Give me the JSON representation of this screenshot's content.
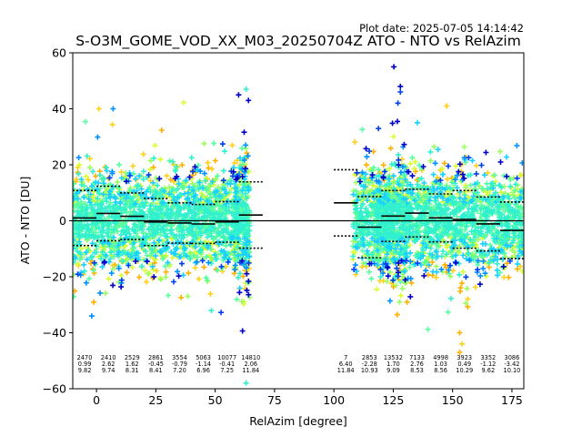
{
  "header": {
    "plot_date": "Plot date: 2025-07-05 14:14:42",
    "title": "S-O3M_GOME_VOD_XX_M03_20250704Z ATO - NTO vs RelAzim"
  },
  "chart_data": {
    "type": "scatter",
    "title": "S-O3M_GOME_VOD_XX_M03_20250704Z ATO - NTO vs RelAzim",
    "xlabel": "RelAzim [degree]",
    "ylabel": "ATO - NTO [DU]",
    "xlim": [
      -10,
      180
    ],
    "ylim": [
      -60,
      60
    ],
    "xticks": [
      0,
      25,
      50,
      75,
      100,
      125,
      150,
      175
    ],
    "yticks": [
      -60,
      -40,
      -20,
      0,
      20,
      40,
      60
    ],
    "xtick_labels": [
      "0",
      "25",
      "50",
      "75",
      "100",
      "125",
      "150",
      "175"
    ],
    "ytick_labels": [
      "−60",
      "−40",
      "−20",
      "0",
      "20",
      "40",
      "60"
    ],
    "grid": false,
    "zero_line": 0,
    "scatter_colors": [
      "#ffb000",
      "#ffd21a",
      "#d8ff30",
      "#98ff5c",
      "#58ffa0",
      "#30f0d0",
      "#1ad0ff",
      "#0090ff",
      "#0040f0",
      "#0000c8"
    ],
    "bins": [
      {
        "x": [
          -10,
          0
        ],
        "count": "2470",
        "mean": "0.99",
        "std": "9.82"
      },
      {
        "x": [
          0,
          10
        ],
        "count": "2410",
        "mean": "2.62",
        "std": "9.74"
      },
      {
        "x": [
          10,
          20
        ],
        "count": "2529",
        "mean": "1.62",
        "std": "8.31"
      },
      {
        "x": [
          20,
          30
        ],
        "count": "2861",
        "mean": "-0.45",
        "std": "8.41"
      },
      {
        "x": [
          30,
          40
        ],
        "count": "3554",
        "mean": "-0.79",
        "std": "7.20"
      },
      {
        "x": [
          40,
          50
        ],
        "count": "5063",
        "mean": "-1.14",
        "std": "6.96"
      },
      {
        "x": [
          50,
          60
        ],
        "count": "10077",
        "mean": "-0.41",
        "std": "7.25"
      },
      {
        "x": [
          60,
          70
        ],
        "count": "14810",
        "mean": "2.06",
        "std": "11.84"
      },
      {
        "x": [
          100,
          110
        ],
        "count": "7",
        "mean": "6.40",
        "std": "11.84"
      },
      {
        "x": [
          110,
          120
        ],
        "count": "2853",
        "mean": "-2.28",
        "std": "10.93"
      },
      {
        "x": [
          120,
          130
        ],
        "count": "13532",
        "mean": "1.70",
        "std": "9.09"
      },
      {
        "x": [
          130,
          140
        ],
        "count": "7133",
        "mean": "2.76",
        "std": "8.53"
      },
      {
        "x": [
          140,
          150
        ],
        "count": "4998",
        "mean": "1.03",
        "std": "8.56"
      },
      {
        "x": [
          150,
          160
        ],
        "count": "3923",
        "mean": "0.49",
        "std": "10.29"
      },
      {
        "x": [
          160,
          170
        ],
        "count": "3352",
        "mean": "-1.12",
        "std": "9.62"
      },
      {
        "x": [
          170,
          180
        ],
        "count": "3086",
        "mean": "-3.42",
        "std": "10.10"
      }
    ]
  }
}
